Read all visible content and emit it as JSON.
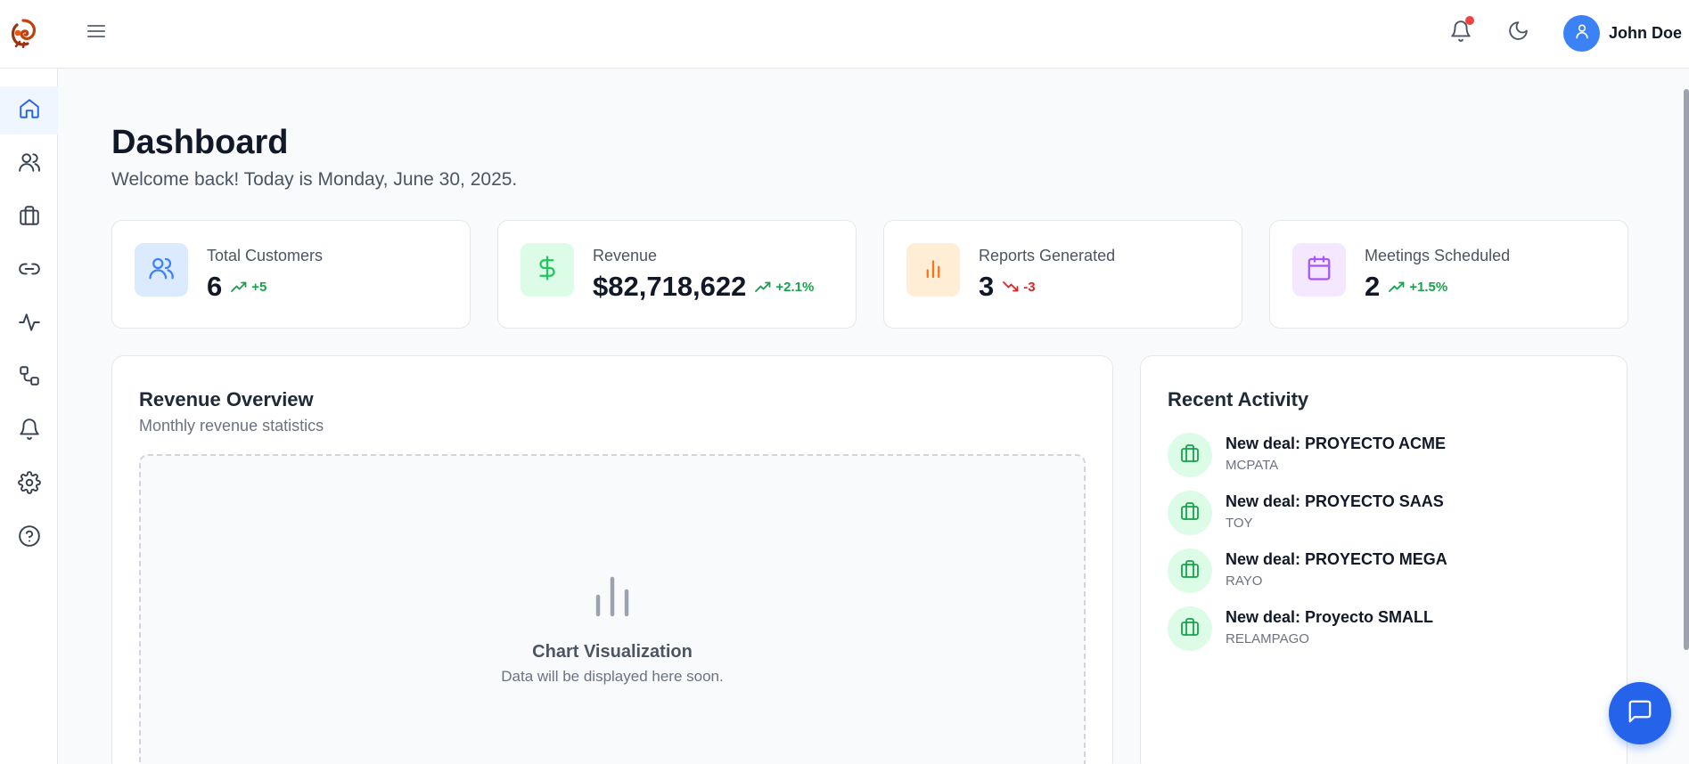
{
  "header": {
    "user_name": "John Doe",
    "icons": [
      "logo",
      "menu-icon",
      "bell-icon",
      "moon-icon",
      "user-icon"
    ],
    "notification_dot_color": "#ef4444"
  },
  "sidebar": {
    "items": [
      {
        "name": "home",
        "icon": "home-icon",
        "active": true
      },
      {
        "name": "customers",
        "icon": "users-icon",
        "active": false
      },
      {
        "name": "deals",
        "icon": "briefcase-icon",
        "active": false
      },
      {
        "name": "integrations",
        "icon": "link-icon",
        "active": false
      },
      {
        "name": "activity",
        "icon": "activity-icon",
        "active": false
      },
      {
        "name": "workflows",
        "icon": "workflow-icon",
        "active": false
      },
      {
        "name": "notifications",
        "icon": "bell-icon",
        "active": false
      },
      {
        "name": "settings",
        "icon": "gear-icon",
        "active": false
      },
      {
        "name": "help",
        "icon": "help-icon",
        "active": false
      }
    ],
    "active_color": "#2563eb"
  },
  "page": {
    "title": "Dashboard",
    "welcome": "Welcome back! Today is Monday, June 30, 2025."
  },
  "stats": [
    {
      "label": "Total Customers",
      "value": "6",
      "trend": "+5",
      "direction": "up",
      "icon": "users-icon",
      "color": "#3b82f6",
      "bg": "#dbeafe"
    },
    {
      "label": "Revenue",
      "value": "$82,718,622",
      "trend": "+2.1%",
      "direction": "up",
      "icon": "dollar-icon",
      "color": "#22c55e",
      "bg": "#dcfce7"
    },
    {
      "label": "Reports Generated",
      "value": "3",
      "trend": "-3",
      "direction": "down",
      "icon": "bar-chart-icon",
      "color": "#f97316",
      "bg": "#ffedd5"
    },
    {
      "label": "Meetings Scheduled",
      "value": "2",
      "trend": "+1.5%",
      "direction": "up",
      "icon": "calendar-icon",
      "color": "#a855f7",
      "bg": "#f3e8ff"
    }
  ],
  "revenue_panel": {
    "title": "Revenue Overview",
    "subtitle": "Monthly revenue statistics",
    "placeholder_title": "Chart Visualization",
    "placeholder_text": "Data will be displayed here soon."
  },
  "activity_panel": {
    "title": "Recent Activity",
    "items": [
      {
        "title": "New deal: PROYECTO ACME",
        "subtitle": "MCPATA"
      },
      {
        "title": "New deal: PROYECTO SAAS",
        "subtitle": "TOY"
      },
      {
        "title": "New deal: PROYECTO MEGA",
        "subtitle": "RAYO"
      },
      {
        "title": "New deal: Proyecto SMALL",
        "subtitle": "RELAMPAGO"
      }
    ]
  },
  "chat": {
    "icon": "chat-icon",
    "color": "#2563eb"
  }
}
